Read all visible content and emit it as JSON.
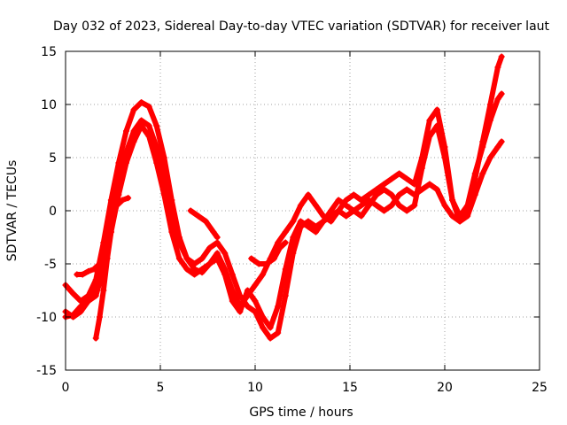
{
  "chart_data": {
    "type": "scatter",
    "title": "Day 032 of 2023, Sidereal Day-to-day VTEC variation (SDTVAR) for receiver laut",
    "xlabel": "GPS time / hours",
    "ylabel": "SDTVAR / TECUs",
    "xlim": [
      0,
      25
    ],
    "ylim": [
      -15,
      15
    ],
    "xticks": [
      0,
      5,
      10,
      15,
      20,
      25
    ],
    "yticks": [
      -15,
      -10,
      -5,
      0,
      5,
      10,
      15
    ],
    "xtick_labels": [
      "0",
      "5",
      "10",
      "15",
      "20",
      "25"
    ],
    "ytick_labels": [
      "-15",
      "-10",
      "-5",
      "0",
      "5",
      "10",
      "15"
    ],
    "grid": true,
    "marker": "+",
    "series": [
      {
        "name": "trace-1",
        "color": "#ff0000",
        "x": [
          0,
          0.4,
          0.8,
          1.2,
          1.6,
          2.0,
          2.4,
          2.8,
          3.2,
          3.6,
          4.0,
          4.4,
          4.8,
          5.2,
          5.6,
          6.0,
          6.4,
          6.8,
          7.2,
          7.6,
          8.0,
          8.4,
          8.8,
          9.2,
          9.6,
          10.0,
          10.4,
          10.8,
          11.2,
          11.6,
          12.0,
          12.4,
          12.8,
          13.2,
          13.6,
          14.0,
          14.4,
          14.8,
          15.2,
          15.6,
          16.0,
          16.4,
          16.8,
          17.2,
          17.6,
          18.0,
          18.4,
          18.8,
          19.2,
          19.6,
          20.0,
          20.4,
          20.8,
          21.2,
          21.6,
          22.0,
          22.4,
          22.8,
          23.0
        ],
        "y": [
          -7.0,
          -7.8,
          -8.5,
          -8.0,
          -6.5,
          -3.0,
          1.0,
          4.5,
          7.5,
          9.5,
          10.2,
          9.8,
          8.0,
          5.0,
          1.0,
          -2.5,
          -4.5,
          -5.5,
          -5.8,
          -5.0,
          -4.0,
          -5.5,
          -7.5,
          -9.0,
          -8.0,
          -7.0,
          -6.0,
          -4.5,
          -3.0,
          -2.0,
          -1.0,
          0.5,
          1.5,
          0.5,
          -0.5,
          -1.0,
          0.0,
          1.0,
          1.5,
          1.0,
          1.5,
          2.0,
          2.5,
          3.0,
          3.5,
          3.0,
          2.5,
          5.0,
          8.5,
          9.5,
          6.0,
          1.0,
          -1.0,
          0.0,
          3.0,
          6.5,
          10.0,
          13.5,
          14.5
        ]
      },
      {
        "name": "trace-2",
        "color": "#ff0000",
        "x": [
          0,
          0.4,
          0.8,
          1.2,
          1.6,
          2.0,
          2.4,
          2.8,
          3.2,
          3.6,
          4.0,
          4.4,
          4.8,
          5.2,
          5.6,
          6.0,
          6.4,
          6.8,
          7.2,
          7.6,
          8.0,
          8.4,
          8.8,
          9.2,
          9.6,
          10.0,
          10.4,
          10.8,
          11.2,
          11.6,
          12.0,
          12.4,
          12.8,
          13.2,
          13.6,
          14.0,
          14.4,
          14.8,
          15.2,
          15.6,
          16.0,
          16.4,
          16.8,
          17.2,
          17.6,
          18.0,
          18.4,
          18.8,
          19.2,
          19.6,
          20.0,
          20.4,
          20.8,
          21.2,
          21.6,
          22.0,
          22.4,
          22.8,
          23.0
        ],
        "y": [
          -9.5,
          -10.0,
          -9.5,
          -8.5,
          -7.0,
          -4.5,
          -1.0,
          2.5,
          5.5,
          7.5,
          8.5,
          8.0,
          6.0,
          3.0,
          -0.5,
          -3.0,
          -4.5,
          -5.0,
          -4.5,
          -3.5,
          -3.0,
          -4.0,
          -6.0,
          -8.0,
          -9.0,
          -9.5,
          -11.0,
          -12.0,
          -11.5,
          -8.0,
          -4.0,
          -1.5,
          -1.0,
          -1.5,
          -1.0,
          0.0,
          1.0,
          0.5,
          0.0,
          -0.5,
          0.5,
          1.5,
          2.0,
          1.5,
          0.5,
          0.0,
          0.5,
          4.0,
          7.0,
          8.0,
          5.0,
          1.0,
          -0.5,
          0.5,
          3.5,
          6.0,
          8.5,
          10.5,
          11.0
        ]
      },
      {
        "name": "trace-3",
        "color": "#ff0000",
        "x": [
          0,
          0.4,
          0.8,
          1.2,
          1.6,
          2.0,
          2.4,
          2.8,
          3.2,
          3.6,
          4.0,
          4.4,
          4.8,
          5.2,
          5.6,
          6.0,
          6.4,
          6.8,
          7.2,
          7.6,
          8.0,
          8.4,
          8.8,
          9.2,
          9.6,
          10.0,
          10.4,
          10.8,
          11.2,
          11.6,
          12.0,
          12.4,
          12.8,
          13.2,
          13.6,
          14.0,
          14.4,
          14.8,
          15.2,
          15.6,
          16.0,
          16.4,
          16.8,
          17.2,
          17.6,
          18.0,
          18.4,
          18.8,
          19.2,
          19.6,
          20.0,
          20.4,
          20.8,
          21.2,
          21.6,
          22.0,
          22.4,
          22.8,
          23.0
        ],
        "y": [
          -10.0,
          -9.8,
          -9.0,
          -8.5,
          -8.0,
          -5.5,
          -2.0,
          1.5,
          4.5,
          6.5,
          8.0,
          7.0,
          4.5,
          1.5,
          -2.0,
          -4.5,
          -5.5,
          -6.0,
          -5.5,
          -5.0,
          -4.5,
          -6.0,
          -8.5,
          -9.5,
          -7.5,
          -8.5,
          -10.0,
          -11.0,
          -9.0,
          -5.5,
          -2.5,
          -1.0,
          -1.5,
          -2.0,
          -1.0,
          -0.5,
          0.0,
          -0.5,
          0.0,
          0.5,
          1.0,
          0.5,
          0.0,
          0.5,
          1.5,
          2.0,
          1.5,
          2.0,
          2.5,
          2.0,
          0.5,
          -0.5,
          -1.0,
          -0.5,
          1.5,
          3.5,
          5.0,
          6.0,
          6.5
        ]
      },
      {
        "name": "trace-4",
        "color": "#ff0000",
        "x": [
          0.6,
          0.9,
          1.2,
          1.5,
          1.8,
          2.1,
          2.4,
          2.7,
          3.0,
          3.3
        ],
        "y": [
          -6.0,
          -6.0,
          -5.7,
          -5.5,
          -5.0,
          -3.0,
          -1.0,
          0.5,
          1.0,
          1.2
        ]
      },
      {
        "name": "trace-5",
        "color": "#ff0000",
        "x": [
          1.6,
          1.8,
          2.0,
          2.2,
          2.4
        ],
        "y": [
          -12.0,
          -10.0,
          -7.5,
          -4.5,
          -2.0
        ]
      },
      {
        "name": "trace-6",
        "color": "#ff0000",
        "x": [
          6.6,
          7.0,
          7.4,
          7.8,
          8.0
        ],
        "y": [
          0.0,
          -0.5,
          -1.0,
          -2.0,
          -2.5
        ]
      },
      {
        "name": "trace-7",
        "color": "#ff0000",
        "x": [
          9.8,
          10.2,
          10.6,
          11.0,
          11.3,
          11.6
        ],
        "y": [
          -4.5,
          -5.0,
          -5.0,
          -4.5,
          -3.5,
          -3.0
        ]
      }
    ]
  }
}
